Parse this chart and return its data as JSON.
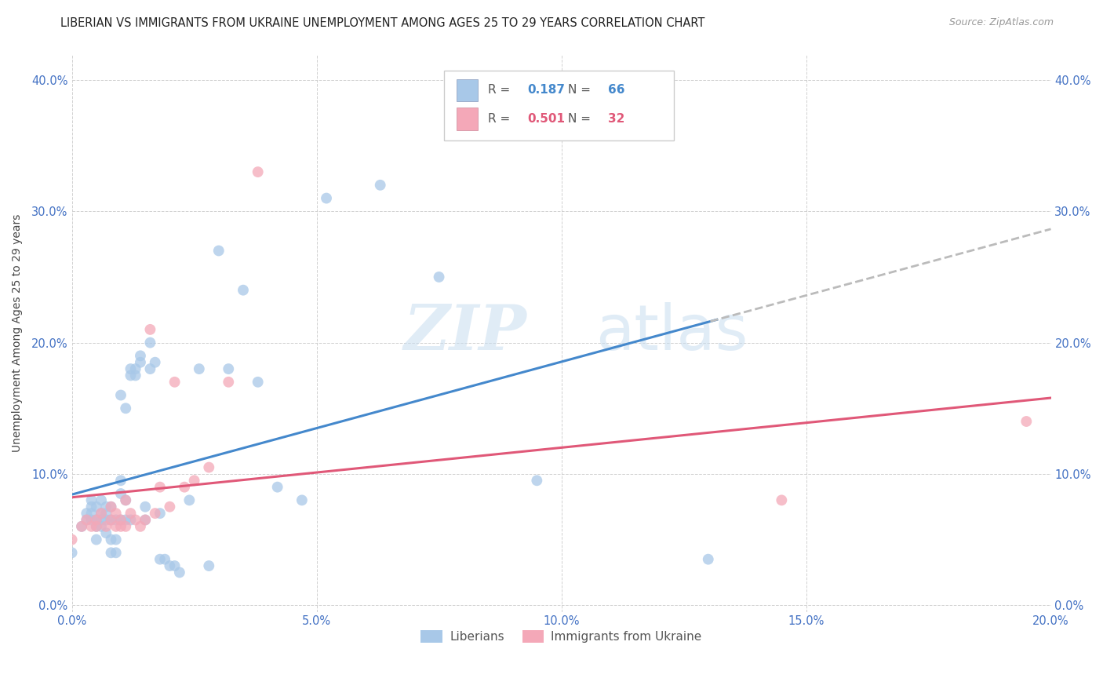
{
  "title": "LIBERIAN VS IMMIGRANTS FROM UKRAINE UNEMPLOYMENT AMONG AGES 25 TO 29 YEARS CORRELATION CHART",
  "source": "Source: ZipAtlas.com",
  "ylabel": "Unemployment Among Ages 25 to 29 years",
  "xlim": [
    0.0,
    0.2
  ],
  "ylim": [
    -0.005,
    0.42
  ],
  "xticks": [
    0.0,
    0.05,
    0.1,
    0.15,
    0.2
  ],
  "yticks": [
    0.0,
    0.1,
    0.2,
    0.3,
    0.4
  ],
  "liberian_color": "#a8c8e8",
  "ukraine_color": "#f4a8b8",
  "line_liberian_color": "#4488cc",
  "line_ukraine_color": "#e05878",
  "line_dashed_color": "#bbbbbb",
  "R_liberian": "0.187",
  "N_liberian": "66",
  "R_ukraine": "0.501",
  "N_ukraine": "32",
  "liberian_x": [
    0.0,
    0.002,
    0.003,
    0.003,
    0.004,
    0.004,
    0.004,
    0.004,
    0.005,
    0.005,
    0.005,
    0.005,
    0.006,
    0.006,
    0.006,
    0.006,
    0.007,
    0.007,
    0.007,
    0.007,
    0.008,
    0.008,
    0.008,
    0.008,
    0.009,
    0.009,
    0.009,
    0.01,
    0.01,
    0.01,
    0.01,
    0.011,
    0.011,
    0.011,
    0.012,
    0.012,
    0.012,
    0.013,
    0.013,
    0.014,
    0.014,
    0.015,
    0.015,
    0.016,
    0.016,
    0.017,
    0.018,
    0.018,
    0.019,
    0.02,
    0.021,
    0.022,
    0.024,
    0.026,
    0.028,
    0.03,
    0.032,
    0.035,
    0.038,
    0.042,
    0.047,
    0.052,
    0.063,
    0.075,
    0.095,
    0.13
  ],
  "liberian_y": [
    0.04,
    0.06,
    0.07,
    0.065,
    0.07,
    0.075,
    0.08,
    0.065,
    0.06,
    0.075,
    0.065,
    0.05,
    0.065,
    0.07,
    0.06,
    0.08,
    0.055,
    0.07,
    0.065,
    0.075,
    0.075,
    0.065,
    0.05,
    0.04,
    0.065,
    0.05,
    0.04,
    0.085,
    0.065,
    0.095,
    0.16,
    0.08,
    0.065,
    0.15,
    0.175,
    0.18,
    0.065,
    0.18,
    0.175,
    0.185,
    0.19,
    0.075,
    0.065,
    0.2,
    0.18,
    0.185,
    0.07,
    0.035,
    0.035,
    0.03,
    0.03,
    0.025,
    0.08,
    0.18,
    0.03,
    0.27,
    0.18,
    0.24,
    0.17,
    0.09,
    0.08,
    0.31,
    0.32,
    0.25,
    0.095,
    0.035
  ],
  "ukraine_x": [
    0.0,
    0.002,
    0.003,
    0.004,
    0.005,
    0.005,
    0.006,
    0.007,
    0.008,
    0.008,
    0.009,
    0.009,
    0.01,
    0.01,
    0.011,
    0.011,
    0.012,
    0.013,
    0.014,
    0.015,
    0.016,
    0.017,
    0.018,
    0.02,
    0.021,
    0.023,
    0.025,
    0.028,
    0.032,
    0.038,
    0.145,
    0.195
  ],
  "ukraine_y": [
    0.05,
    0.06,
    0.065,
    0.06,
    0.06,
    0.065,
    0.07,
    0.06,
    0.065,
    0.075,
    0.06,
    0.07,
    0.06,
    0.065,
    0.06,
    0.08,
    0.07,
    0.065,
    0.06,
    0.065,
    0.21,
    0.07,
    0.09,
    0.075,
    0.17,
    0.09,
    0.095,
    0.105,
    0.17,
    0.33,
    0.08,
    0.14
  ],
  "watermark_zip": "ZIP",
  "watermark_atlas": "atlas",
  "background_color": "#ffffff",
  "grid_color": "#cccccc",
  "title_fontsize": 10.5,
  "axis_label_fontsize": 10,
  "tick_label_color": "#4472c4",
  "right_tick_color": "#4472c4",
  "legend_label_color": "#555555",
  "legend_value_color_blue": "#4488cc",
  "legend_value_color_pink": "#e05878"
}
